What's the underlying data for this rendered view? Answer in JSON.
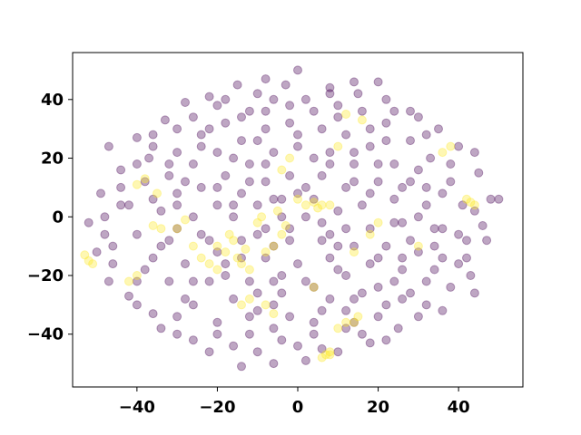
{
  "chart_data": {
    "type": "scatter",
    "title": "",
    "xlabel": "",
    "ylabel": "",
    "xlim": [
      -56,
      56
    ],
    "ylim": [
      -58,
      56
    ],
    "xticks": [
      -40,
      -20,
      0,
      20,
      40
    ],
    "yticks": [
      -40,
      -20,
      0,
      20,
      40
    ],
    "xtick_labels": [
      "−40",
      "−20",
      "0",
      "20",
      "40"
    ],
    "ytick_labels": [
      "−40",
      "−20",
      "0",
      "20",
      "40"
    ],
    "grid": false,
    "legend": "none",
    "marker_alpha": 0.35,
    "series": [
      {
        "color": "#440154",
        "points": [
          [
            -47,
            24
          ],
          [
            -40,
            27
          ],
          [
            -33,
            33
          ],
          [
            -28,
            39
          ],
          [
            -22,
            41
          ],
          [
            -15,
            45
          ],
          [
            -8,
            47
          ],
          [
            0,
            50
          ],
          [
            8,
            44
          ],
          [
            15,
            42
          ],
          [
            22,
            40
          ],
          [
            28,
            36
          ],
          [
            35,
            30
          ],
          [
            40,
            24
          ],
          [
            45,
            15
          ],
          [
            48,
            6
          ],
          [
            50,
            6
          ],
          [
            46,
            -3
          ],
          [
            42,
            -14
          ],
          [
            38,
            -24
          ],
          [
            32,
            -30
          ],
          [
            25,
            -38
          ],
          [
            18,
            -43
          ],
          [
            10,
            -46
          ],
          [
            2,
            -49
          ],
          [
            -6,
            -50
          ],
          [
            -14,
            -51
          ],
          [
            -22,
            -46
          ],
          [
            -30,
            -40
          ],
          [
            -36,
            -33
          ],
          [
            -42,
            -27
          ],
          [
            -47,
            -22
          ],
          [
            -50,
            -12
          ],
          [
            -52,
            -2
          ],
          [
            -49,
            8
          ],
          [
            -44,
            16
          ],
          [
            -37,
            20
          ],
          [
            -30,
            22
          ],
          [
            -24,
            28
          ],
          [
            -18,
            32
          ],
          [
            -12,
            36
          ],
          [
            -6,
            40
          ],
          [
            2,
            40
          ],
          [
            10,
            38
          ],
          [
            16,
            36
          ],
          [
            22,
            32
          ],
          [
            28,
            26
          ],
          [
            33,
            20
          ],
          [
            38,
            12
          ],
          [
            41,
            4
          ],
          [
            40,
            -6
          ],
          [
            36,
            -14
          ],
          [
            32,
            -22
          ],
          [
            26,
            -28
          ],
          [
            20,
            -34
          ],
          [
            12,
            -38
          ],
          [
            4,
            -40
          ],
          [
            -4,
            -42
          ],
          [
            -12,
            -40
          ],
          [
            -20,
            -36
          ],
          [
            -26,
            -30
          ],
          [
            -32,
            -22
          ],
          [
            -36,
            -14
          ],
          [
            -40,
            -6
          ],
          [
            -42,
            4
          ],
          [
            -38,
            12
          ],
          [
            -32,
            14
          ],
          [
            -26,
            18
          ],
          [
            -20,
            22
          ],
          [
            -14,
            26
          ],
          [
            -8,
            30
          ],
          [
            -2,
            32
          ],
          [
            6,
            30
          ],
          [
            12,
            28
          ],
          [
            18,
            24
          ],
          [
            24,
            18
          ],
          [
            28,
            12
          ],
          [
            32,
            4
          ],
          [
            34,
            -4
          ],
          [
            30,
            -12
          ],
          [
            26,
            -18
          ],
          [
            20,
            -24
          ],
          [
            14,
            -28
          ],
          [
            6,
            -32
          ],
          [
            -2,
            -34
          ],
          [
            -10,
            -32
          ],
          [
            -16,
            -28
          ],
          [
            -22,
            -22
          ],
          [
            -28,
            -16
          ],
          [
            -32,
            -8
          ],
          [
            -34,
            2
          ],
          [
            -30,
            8
          ],
          [
            -24,
            10
          ],
          [
            -18,
            14
          ],
          [
            -12,
            18
          ],
          [
            -6,
            22
          ],
          [
            0,
            24
          ],
          [
            8,
            22
          ],
          [
            14,
            18
          ],
          [
            20,
            12
          ],
          [
            24,
            6
          ],
          [
            26,
            -2
          ],
          [
            22,
            -10
          ],
          [
            18,
            -16
          ],
          [
            12,
            -20
          ],
          [
            4,
            -24
          ],
          [
            -4,
            -26
          ],
          [
            -12,
            -22
          ],
          [
            -18,
            -16
          ],
          [
            -22,
            -8
          ],
          [
            -26,
            0
          ],
          [
            -20,
            4
          ],
          [
            -14,
            8
          ],
          [
            -8,
            12
          ],
          [
            -2,
            14
          ],
          [
            6,
            14
          ],
          [
            12,
            10
          ],
          [
            16,
            4
          ],
          [
            18,
            -4
          ],
          [
            14,
            -10
          ],
          [
            8,
            -14
          ],
          [
            0,
            -16
          ],
          [
            -8,
            -14
          ],
          [
            -14,
            -8
          ],
          [
            -16,
            0
          ],
          [
            -10,
            4
          ],
          [
            -4,
            6
          ],
          [
            4,
            6
          ],
          [
            10,
            2
          ],
          [
            12,
            -4
          ],
          [
            6,
            -8
          ],
          [
            -2,
            -8
          ],
          [
            -8,
            -4
          ],
          [
            -4,
            0
          ],
          [
            2,
            0
          ],
          [
            -36,
            28
          ],
          [
            -20,
            38
          ],
          [
            -3,
            45
          ],
          [
            14,
            46
          ],
          [
            30,
            34
          ],
          [
            44,
            22
          ],
          [
            47,
            -8
          ],
          [
            43,
            -20
          ],
          [
            36,
            -32
          ],
          [
            22,
            -42
          ],
          [
            6,
            -45
          ],
          [
            -10,
            -46
          ],
          [
            -26,
            -42
          ],
          [
            -40,
            -30
          ],
          [
            -46,
            -16
          ],
          [
            -48,
            0
          ],
          [
            -44,
            10
          ],
          [
            -34,
            -38
          ],
          [
            -16,
            -44
          ],
          [
            0,
            -44
          ],
          [
            16,
            -40
          ],
          [
            30,
            -34
          ],
          [
            44,
            -26
          ],
          [
            20,
            46
          ],
          [
            -10,
            42
          ],
          [
            -26,
            34
          ],
          [
            -40,
            18
          ],
          [
            -48,
            -6
          ],
          [
            -38,
            -18
          ],
          [
            -28,
            -28
          ],
          [
            -10,
            -26
          ],
          [
            8,
            -28
          ],
          [
            24,
            -22
          ],
          [
            36,
            -4
          ],
          [
            36,
            8
          ],
          [
            30,
            16
          ],
          [
            18,
            30
          ],
          [
            4,
            36
          ],
          [
            -14,
            34
          ],
          [
            -24,
            24
          ],
          [
            -30,
            4
          ],
          [
            -24,
            -6
          ],
          [
            -18,
            -20
          ],
          [
            -4,
            -20
          ],
          [
            10,
            -18
          ],
          [
            20,
            -14
          ],
          [
            28,
            -8
          ],
          [
            30,
            0
          ],
          [
            26,
            10
          ],
          [
            14,
            22
          ],
          [
            0,
            28
          ],
          [
            -16,
            20
          ],
          [
            -20,
            10
          ],
          [
            -14,
            -14
          ],
          [
            -6,
            -10
          ],
          [
            8,
            -6
          ],
          [
            18,
            8
          ],
          [
            8,
            18
          ],
          [
            -8,
            18
          ],
          [
            -16,
            4
          ],
          [
            -6,
            -30
          ],
          [
            12,
            -32
          ],
          [
            22,
            -30
          ],
          [
            34,
            -18
          ],
          [
            40,
            -16
          ],
          [
            42,
            -8
          ],
          [
            44,
            2
          ],
          [
            38,
            18
          ],
          [
            32,
            28
          ],
          [
            24,
            36
          ],
          [
            8,
            42
          ],
          [
            -2,
            38
          ],
          [
            -18,
            40
          ],
          [
            -30,
            30
          ],
          [
            -36,
            24
          ],
          [
            -44,
            4
          ],
          [
            -46,
            -10
          ],
          [
            -40,
            -22
          ],
          [
            -30,
            -34
          ],
          [
            -20,
            -40
          ],
          [
            -6,
            -38
          ],
          [
            4,
            -36
          ],
          [
            14,
            -36
          ],
          [
            28,
            -26
          ],
          [
            34,
            -10
          ],
          [
            32,
            10
          ],
          [
            22,
            26
          ],
          [
            10,
            34
          ],
          [
            -8,
            36
          ],
          [
            -22,
            30
          ],
          [
            -32,
            18
          ],
          [
            -36,
            6
          ],
          [
            -34,
            -10
          ],
          [
            -26,
            -22
          ],
          [
            -12,
            -34
          ],
          [
            2,
            -22
          ],
          [
            16,
            -26
          ],
          [
            26,
            -14
          ],
          [
            24,
            -2
          ],
          [
            20,
            18
          ],
          [
            4,
            20
          ],
          [
            -10,
            26
          ],
          [
            -28,
            12
          ],
          [
            -30,
            -4
          ],
          [
            -20,
            -12
          ],
          [
            -6,
            -22
          ],
          [
            10,
            -10
          ],
          [
            14,
            12
          ],
          [
            2,
            10
          ],
          [
            -12,
            12
          ],
          [
            -10,
            -6
          ],
          [
            -2,
            -4
          ],
          [
            6,
            -2
          ],
          [
            0,
            8
          ],
          [
            -6,
            6
          ]
        ]
      },
      {
        "color": "#fde725",
        "points": [
          [
            -53,
            -13
          ],
          [
            -52,
            -15
          ],
          [
            -51,
            -16
          ],
          [
            -40,
            11
          ],
          [
            -38,
            13
          ],
          [
            -35,
            8
          ],
          [
            -36,
            -3
          ],
          [
            -34,
            -4
          ],
          [
            -30,
            -4
          ],
          [
            -28,
            -1
          ],
          [
            -20,
            -10
          ],
          [
            -18,
            -12
          ],
          [
            -16,
            -8
          ],
          [
            -15,
            -14
          ],
          [
            -14,
            -16
          ],
          [
            -12,
            -18
          ],
          [
            -13,
            -11
          ],
          [
            -17,
            -6
          ],
          [
            -10,
            -2
          ],
          [
            -9,
            0
          ],
          [
            -8,
            -12
          ],
          [
            -6,
            -10
          ],
          [
            -5,
            2
          ],
          [
            -4,
            -6
          ],
          [
            -3,
            -3
          ],
          [
            -14,
            -30
          ],
          [
            -12,
            -28
          ],
          [
            -8,
            -30
          ],
          [
            -6,
            -33
          ],
          [
            2,
            4
          ],
          [
            4,
            5
          ],
          [
            5,
            3
          ],
          [
            6,
            4
          ],
          [
            0,
            6
          ],
          [
            8,
            4
          ],
          [
            14,
            -12
          ],
          [
            12,
            -36
          ],
          [
            14,
            -36
          ],
          [
            15,
            -34
          ],
          [
            10,
            -38
          ],
          [
            8,
            -46
          ],
          [
            7,
            -47
          ],
          [
            6,
            -48
          ],
          [
            8,
            -47
          ],
          [
            4,
            -24
          ],
          [
            -22,
            -16
          ],
          [
            -24,
            -14
          ],
          [
            -20,
            -18
          ],
          [
            -26,
            -10
          ],
          [
            18,
            -6
          ],
          [
            20,
            -2
          ],
          [
            16,
            33
          ],
          [
            12,
            35
          ],
          [
            42,
            6
          ],
          [
            43,
            5
          ],
          [
            44,
            4
          ],
          [
            30,
            -10
          ],
          [
            -40,
            -20
          ],
          [
            -42,
            -22
          ],
          [
            -2,
            20
          ],
          [
            -4,
            16
          ],
          [
            10,
            24
          ],
          [
            36,
            22
          ],
          [
            38,
            24
          ]
        ]
      }
    ]
  }
}
